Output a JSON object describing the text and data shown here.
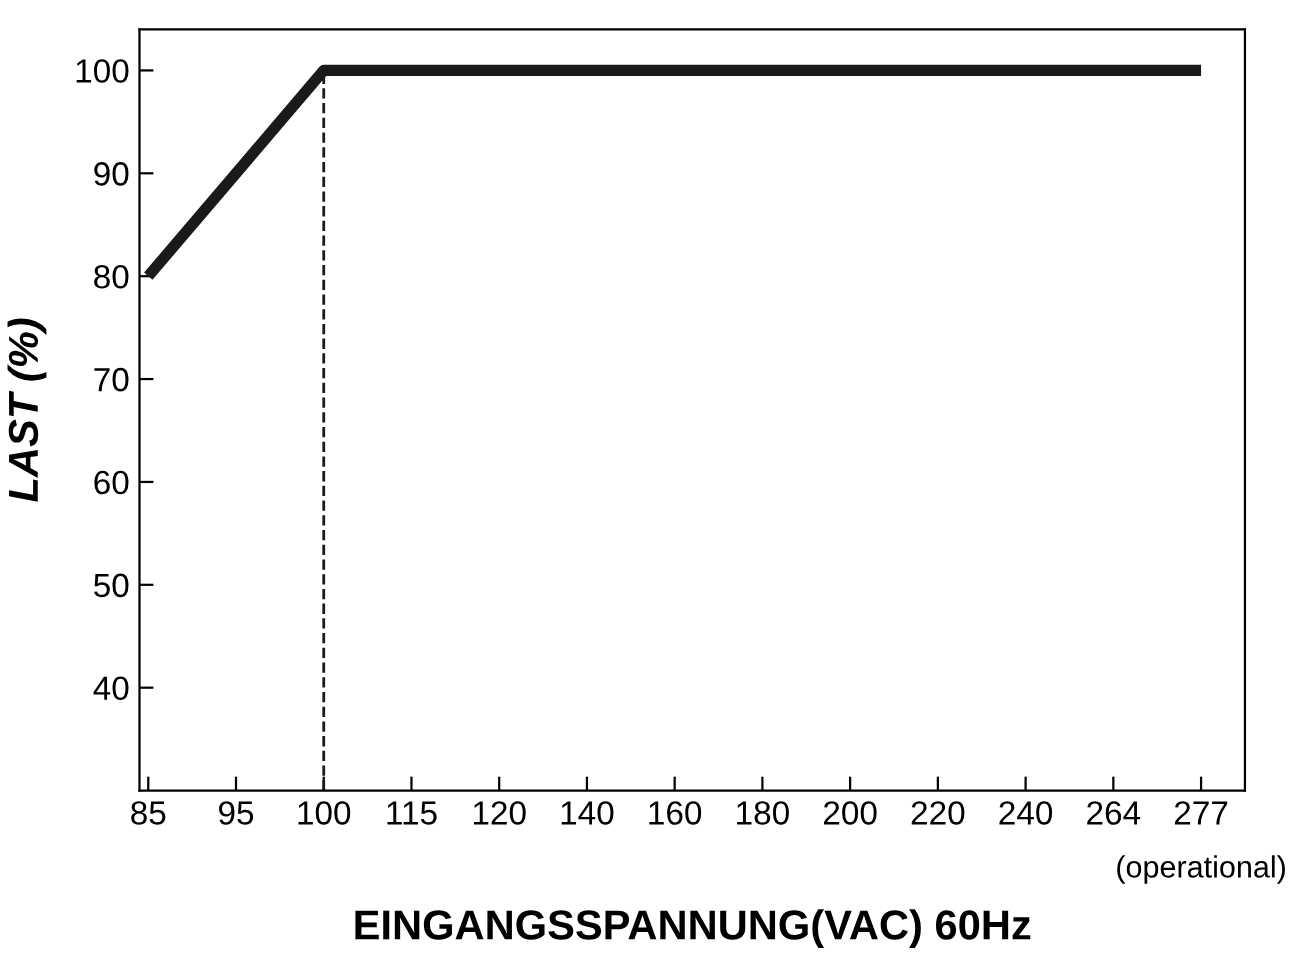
{
  "chart_data": {
    "type": "line",
    "xlabel": "EINGANGSSPANNUNG(VAC) 60Hz",
    "ylabel": "LAST (%)",
    "categories": [
      "85",
      "95",
      "100",
      "115",
      "120",
      "140",
      "160",
      "180",
      "200",
      "220",
      "240",
      "264",
      "277"
    ],
    "series": [
      {
        "color": "#1a1a1a",
        "values": [
          80,
          90,
          100,
          100,
          100,
          100,
          100,
          100,
          100,
          100,
          100,
          100,
          100
        ]
      }
    ],
    "ylim": [
      30,
      104
    ],
    "yticks": [
      40,
      50,
      60,
      70,
      80,
      90,
      100
    ],
    "ref_lines": [
      {
        "axis": "x",
        "value": "100",
        "line_style": "dashed",
        "color": "#1a1a1a"
      }
    ],
    "annotations": [
      "(operational)"
    ],
    "grid": false,
    "legend": false,
    "marker": "none",
    "line_style": "solid"
  }
}
